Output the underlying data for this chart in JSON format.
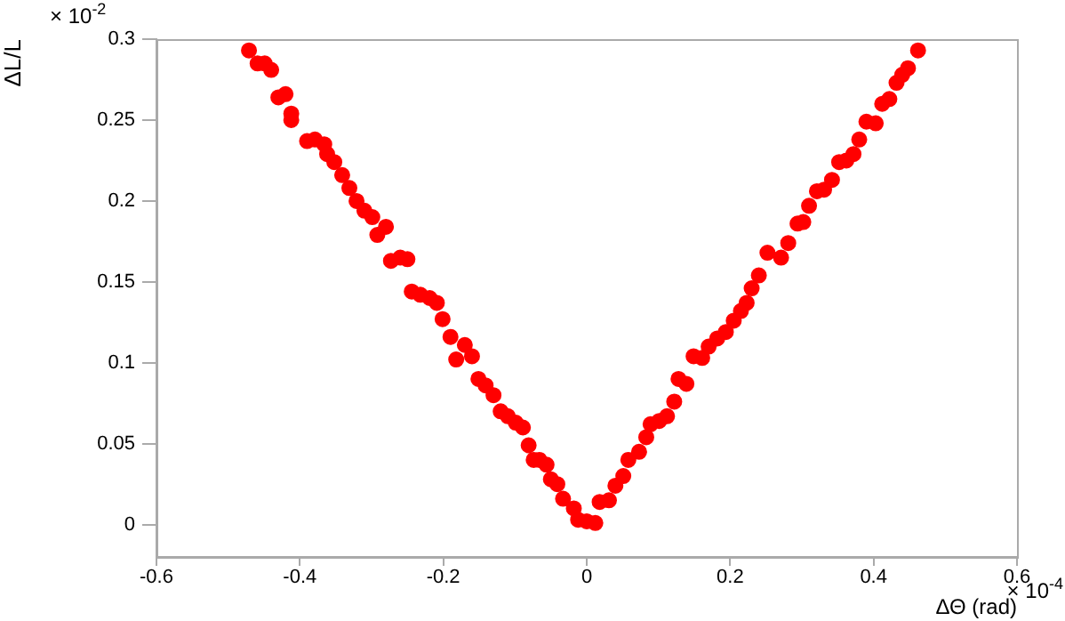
{
  "chart_data": {
    "type": "scatter",
    "xlabel": "ΔΘ (rad)",
    "ylabel": "ΔL/L",
    "annotations": [
      "× 10$^{-2}$",
      "× 10$^{-4}$"
    ],
    "xlim": [
      -0.6,
      0.6
    ],
    "xticks": [
      -0.6,
      -0.4,
      -0.2,
      0,
      0.2,
      0.4,
      0.6
    ],
    "ylim": [
      -0.02,
      0.3
    ],
    "yticks": [
      0,
      0.05,
      0.1,
      0.15,
      0.2,
      0.25,
      0.3
    ],
    "grid": false,
    "legend": false,
    "marker": "circle",
    "series": [
      {
        "color": "#ff0000",
        "x": [
          -0.471,
          -0.459,
          -0.449,
          -0.44,
          -0.43,
          -0.42,
          -0.412,
          -0.412,
          -0.39,
          -0.379,
          -0.366,
          -0.362,
          -0.352,
          -0.341,
          -0.331,
          -0.321,
          -0.31,
          -0.299,
          -0.28,
          -0.292,
          -0.273,
          -0.26,
          -0.25,
          -0.244,
          -0.232,
          -0.219,
          -0.209,
          -0.201,
          -0.19,
          -0.17,
          -0.182,
          -0.16,
          -0.151,
          -0.141,
          -0.13,
          -0.12,
          -0.11,
          -0.099,
          -0.089,
          -0.081,
          -0.074,
          -0.066,
          -0.056,
          -0.05,
          -0.041,
          -0.033,
          -0.018,
          -0.012,
          0,
          0.012,
          0.018,
          0.031,
          0.04,
          0.051,
          0.058,
          0.073,
          0.083,
          0.089,
          0.101,
          0.112,
          0.122,
          0.128,
          0.139,
          0.149,
          0.161,
          0.17,
          0.182,
          0.194,
          0.205,
          0.215,
          0.223,
          0.23,
          0.24,
          0.252,
          0.271,
          0.281,
          0.294,
          0.302,
          0.31,
          0.321,
          0.331,
          0.342,
          0.352,
          0.362,
          0.372,
          0.38,
          0.39,
          0.403,
          0.412,
          0.422,
          0.432,
          0.44,
          0.448,
          0.462
        ],
        "values": [
          0.293,
          0.285,
          0.285,
          0.281,
          0.264,
          0.266,
          0.254,
          0.25,
          0.237,
          0.238,
          0.235,
          0.229,
          0.224,
          0.216,
          0.208,
          0.2,
          0.194,
          0.19,
          0.184,
          0.179,
          0.163,
          0.165,
          0.164,
          0.144,
          0.142,
          0.14,
          0.137,
          0.127,
          0.116,
          0.111,
          0.102,
          0.104,
          0.09,
          0.086,
          0.08,
          0.07,
          0.067,
          0.063,
          0.06,
          0.049,
          0.04,
          0.04,
          0.037,
          0.028,
          0.025,
          0.016,
          0.01,
          0.003,
          0.002,
          0.001,
          0.014,
          0.015,
          0.024,
          0.03,
          0.04,
          0.045,
          0.054,
          0.062,
          0.064,
          0.067,
          0.076,
          0.09,
          0.087,
          0.104,
          0.103,
          0.11,
          0.115,
          0.119,
          0.126,
          0.132,
          0.137,
          0.146,
          0.154,
          0.168,
          0.165,
          0.174,
          0.186,
          0.187,
          0.197,
          0.206,
          0.207,
          0.213,
          0.224,
          0.225,
          0.229,
          0.238,
          0.249,
          0.248,
          0.26,
          0.263,
          0.273,
          0.278,
          0.282,
          0.293
        ]
      }
    ]
  }
}
